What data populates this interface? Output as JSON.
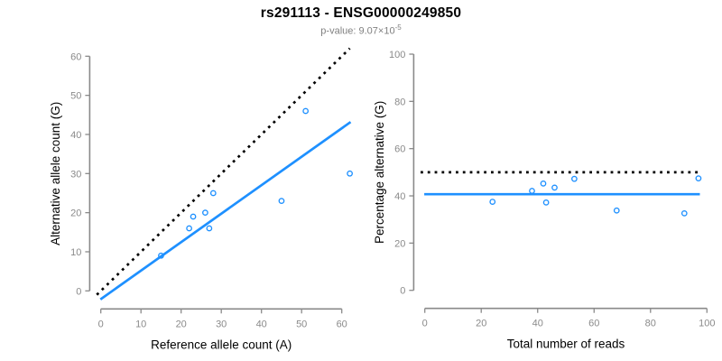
{
  "header": {
    "title": "rs291113 - ENSG00000249850",
    "pvalue_prefix": "p-value: 9.07×10",
    "pvalue_exponent": "-5"
  },
  "colors": {
    "accent": "#1E90FF",
    "dotted_line": "#000000",
    "axis": "#8a8a8a",
    "tick_label": "#8a8a8a",
    "axis_title": "#000000",
    "subtitle": "#808080"
  },
  "chart_data": [
    {
      "type": "scatter",
      "name": "allele-counts",
      "xlabel": "Reference allele count (A)",
      "ylabel": "Alternative allele count (G)",
      "xticks": [
        0,
        10,
        20,
        30,
        40,
        50,
        60
      ],
      "yticks": [
        0,
        10,
        20,
        30,
        40,
        50,
        60
      ],
      "xlim": [
        -2.5,
        63
      ],
      "ylim": [
        -2.5,
        63
      ],
      "grid": false,
      "legend": "none",
      "points": [
        [
          15,
          9
        ],
        [
          22,
          16
        ],
        [
          23,
          19
        ],
        [
          26,
          20
        ],
        [
          27,
          16
        ],
        [
          28,
          25
        ],
        [
          45,
          23
        ],
        [
          51,
          46
        ],
        [
          62,
          30
        ]
      ],
      "lines": [
        {
          "name": "identity-line",
          "style": "dotted",
          "color": "#000000",
          "slope": 1,
          "intercept": 0,
          "x_from": -1,
          "x_to": 62
        },
        {
          "name": "fit-line",
          "style": "solid",
          "color": "#1E90FF",
          "slope": 0.728,
          "intercept": -2.1,
          "x_from": -0.1,
          "x_to": 62.2
        }
      ]
    },
    {
      "type": "scatter",
      "name": "percentage-vs-reads",
      "xlabel": "Total number of reads",
      "ylabel": "Percentage alternative (G)",
      "xticks": [
        0,
        20,
        40,
        60,
        80,
        100
      ],
      "yticks": [
        0,
        20,
        40,
        60,
        80,
        100
      ],
      "xlim": [
        -4,
        102
      ],
      "ylim": [
        -4,
        102
      ],
      "grid": false,
      "legend": "none",
      "points": [
        [
          24,
          37.5
        ],
        [
          38,
          42.1
        ],
        [
          42,
          45.2
        ],
        [
          43,
          37.2
        ],
        [
          46,
          43.5
        ],
        [
          53,
          47.2
        ],
        [
          68,
          33.8
        ],
        [
          92,
          32.6
        ],
        [
          97,
          47.4
        ]
      ],
      "lines": [
        {
          "name": "expected-50pct-line",
          "style": "dotted",
          "color": "#000000",
          "slope": 0,
          "intercept": 50,
          "x_from": -1.5,
          "x_to": 98
        },
        {
          "name": "mean-pct-line",
          "style": "solid",
          "color": "#1E90FF",
          "slope": 0,
          "intercept": 40.7,
          "x_from": -0.2,
          "x_to": 97.5
        }
      ]
    }
  ]
}
